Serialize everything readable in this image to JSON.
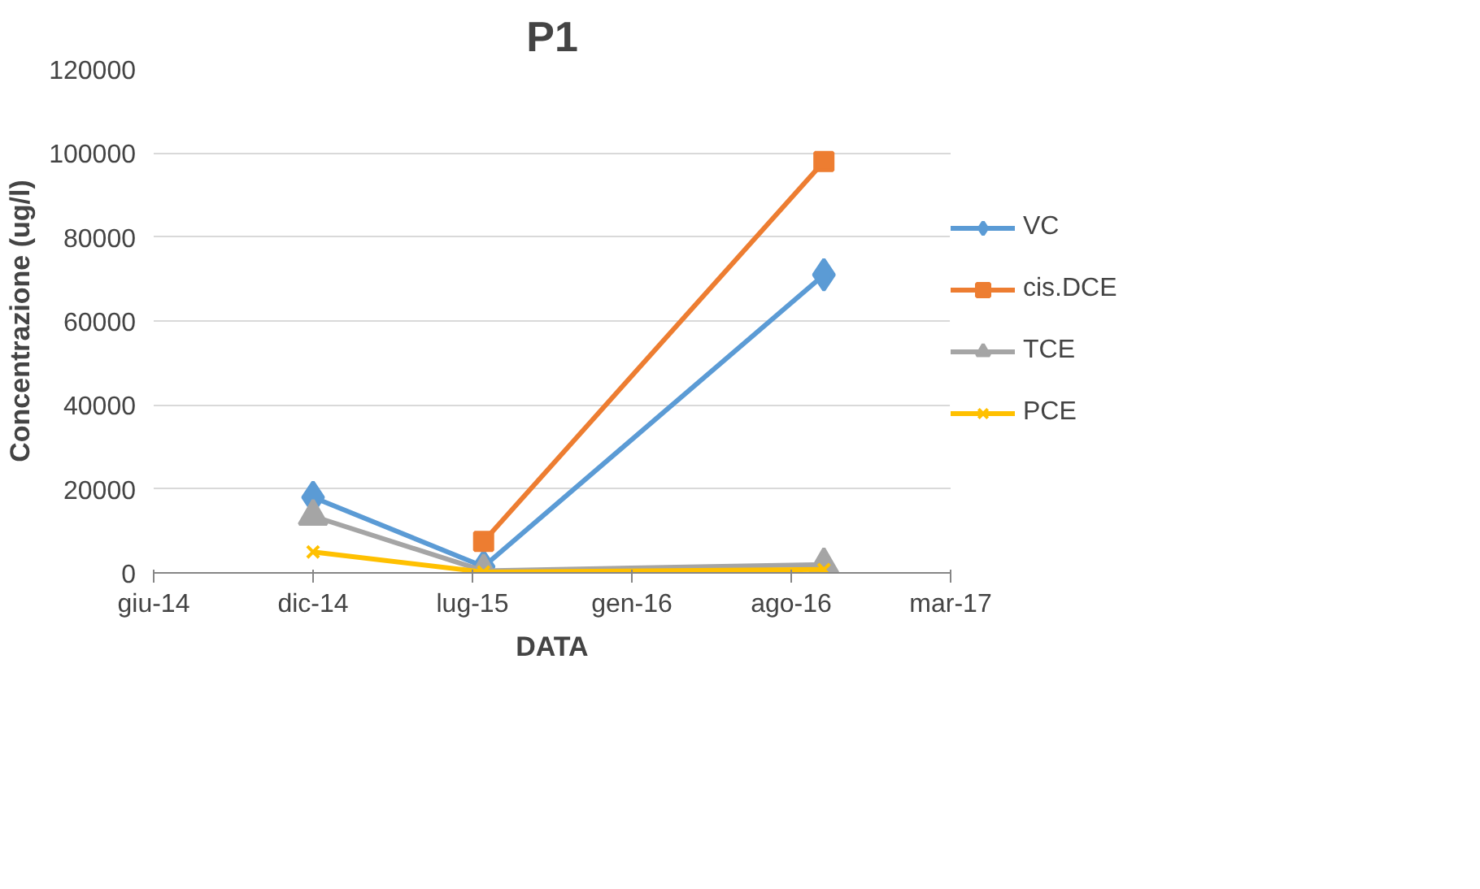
{
  "chart_data": {
    "type": "line",
    "title": "P1",
    "xlabel": "DATA",
    "ylabel": "Concentrazione (ug/l)",
    "xlim": [
      "2014-06-10",
      "2017-03-06"
    ],
    "xticks": [
      {
        "value": "2014-06-10",
        "label": "giu-14"
      },
      {
        "value": "2014-12-27",
        "label": "dic-14"
      },
      {
        "value": "2015-07-15",
        "label": "lug-15"
      },
      {
        "value": "2016-01-31",
        "label": "gen-16"
      },
      {
        "value": "2016-08-18",
        "label": "ago-16"
      },
      {
        "value": "2017-03-06",
        "label": "mar-17"
      }
    ],
    "ylim": [
      0,
      120000
    ],
    "yticks": [
      0,
      20000,
      40000,
      60000,
      80000,
      100000,
      120000
    ],
    "x": [
      "2014-12-27",
      "2015-07-29",
      "2016-09-28"
    ],
    "series": [
      {
        "name": "VC",
        "color": "#5b9bd5",
        "marker": "diamond",
        "values": [
          18000,
          1500,
          71000
        ]
      },
      {
        "name": "cis.DCE",
        "color": "#ed7d31",
        "marker": "square",
        "values": [
          null,
          7500,
          98000
        ]
      },
      {
        "name": "TCE",
        "color": "#a5a5a5",
        "marker": "triangle",
        "values": [
          13500,
          500,
          2000
        ]
      },
      {
        "name": "PCE",
        "color": "#ffc000",
        "marker": "cross",
        "values": [
          5000,
          200,
          800
        ]
      }
    ],
    "grid": "y",
    "legend": "right"
  }
}
